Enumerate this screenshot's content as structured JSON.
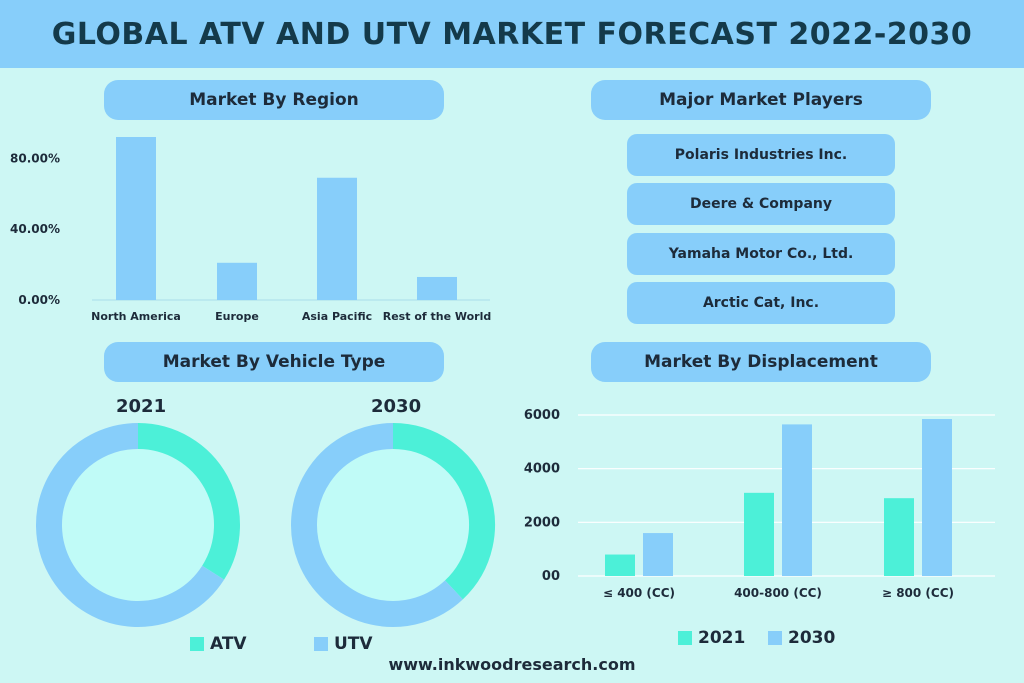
{
  "title": "GLOBAL ATV AND UTV MARKET FORECAST 2022-2030",
  "colors": {
    "light_blue": "#87cefa",
    "teal": "#4cf0d8",
    "bg": "#cdf7f4"
  },
  "sections": {
    "region": "Market By Region",
    "players": "Major Market Players",
    "vehicle": "Market By Vehicle Type",
    "displacement": "Market By Displacement"
  },
  "players": [
    "Polaris Industries Inc.",
    "Deere & Company",
    "Yamaha Motor Co., Ltd.",
    "Arctic Cat, Inc."
  ],
  "footer": "www.inkwoodresearch.com",
  "chart_data": [
    {
      "type": "bar",
      "title": "Market By Region",
      "categories": [
        "North America",
        "Europe",
        "Asia Pacific",
        "Rest of the World"
      ],
      "values": [
        92,
        21,
        69,
        13
      ],
      "yticks": [
        "0.00%",
        "40.00%",
        "80.00%"
      ],
      "ytick_values": [
        0,
        40,
        80
      ],
      "ylim": [
        0,
        92
      ],
      "grid": false
    },
    {
      "type": "pie",
      "title": "2021",
      "labels": [
        "ATV",
        "UTV"
      ],
      "values": [
        34,
        66
      ],
      "colors": [
        "#4cf0d8",
        "#87cefa"
      ]
    },
    {
      "type": "pie",
      "title": "2030",
      "labels": [
        "ATV",
        "UTV"
      ],
      "values": [
        38,
        62
      ],
      "colors": [
        "#4cf0d8",
        "#87cefa"
      ]
    },
    {
      "type": "bar",
      "title": "Market By Displacement",
      "categories": [
        "≤ 400 (CC)",
        "400-800 (CC)",
        "≥ 800 (CC)"
      ],
      "series": [
        {
          "name": "2021",
          "values": [
            800,
            3100,
            2900
          ],
          "color": "#4cf0d8"
        },
        {
          "name": "2030",
          "values": [
            1600,
            5650,
            5850
          ],
          "color": "#87cefa"
        }
      ],
      "yticks": [
        "00",
        "2000",
        "4000",
        "6000"
      ],
      "ytick_values": [
        0,
        2000,
        4000,
        6000
      ],
      "ylim": [
        0,
        6000
      ],
      "grid": true,
      "legend": "bottom"
    }
  ]
}
